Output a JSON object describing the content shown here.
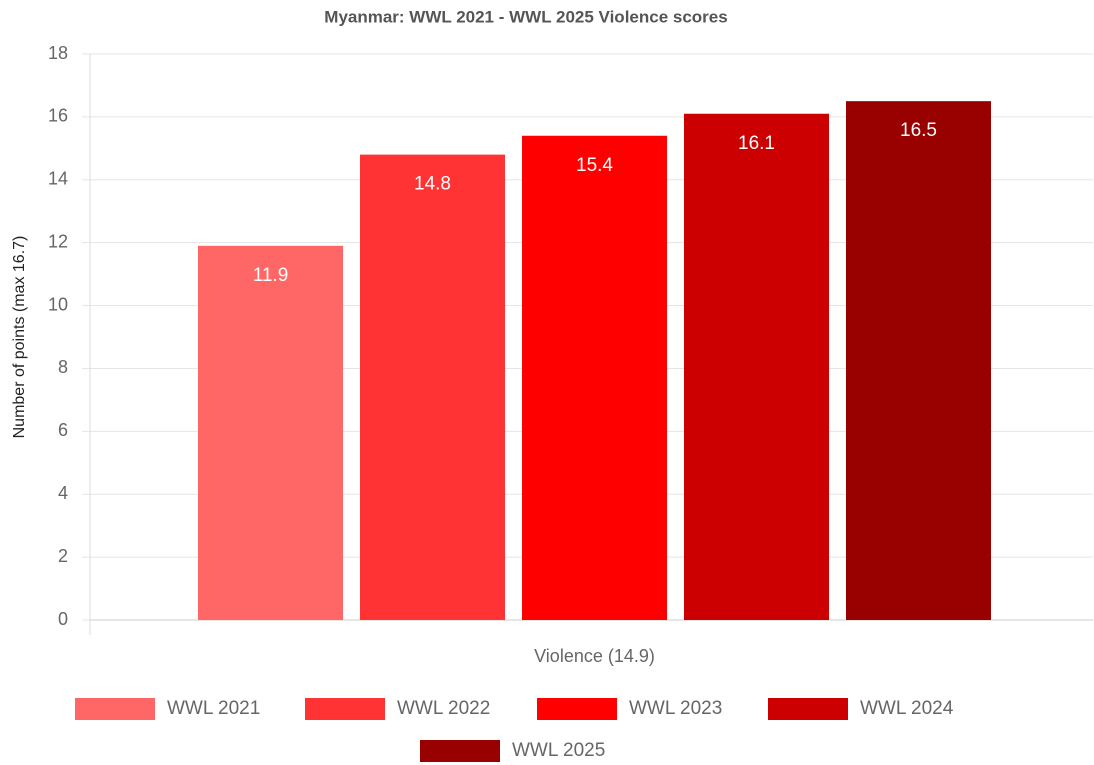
{
  "chart_data": {
    "type": "bar",
    "title": "Myanmar: WWL 2021 - WWL 2025 Violence scores",
    "y_label": "Number of points (max 16.7)",
    "categories": [
      "Violence (14.9)"
    ],
    "series": [
      {
        "name": "WWL 2021",
        "color": "#ff6666",
        "values": [
          11.9
        ]
      },
      {
        "name": "WWL 2022",
        "color": "#ff3333",
        "values": [
          14.8
        ]
      },
      {
        "name": "WWL 2023",
        "color": "#ff0000",
        "values": [
          15.4
        ]
      },
      {
        "name": "WWL 2024",
        "color": "#cc0000",
        "values": [
          16.1
        ]
      },
      {
        "name": "WWL 2025",
        "color": "#990000",
        "values": [
          16.5
        ]
      }
    ],
    "ylim": [
      0,
      18
    ],
    "yticks": [
      0,
      2,
      4,
      6,
      8,
      10,
      12,
      14,
      16,
      18
    ],
    "grid": true,
    "legend": "bottom"
  }
}
